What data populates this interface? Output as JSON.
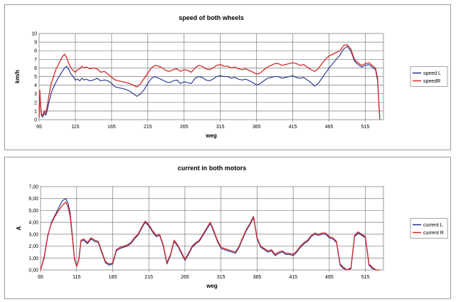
{
  "chart_data": [
    {
      "type": "line",
      "title": "speed of both wheels",
      "xlabel": "weg",
      "ylabel": "km/h",
      "xlim": [
        65,
        540
      ],
      "ylim": [
        0,
        10
      ],
      "x_ticks": [
        "65",
        "115",
        "165",
        "215",
        "265",
        "315",
        "365",
        "415",
        "465",
        "515"
      ],
      "y_ticks": [
        "0",
        "1",
        "2",
        "3",
        "4",
        "5",
        "6",
        "7",
        "8",
        "9",
        "10"
      ],
      "grid": true,
      "legend_position": "right",
      "series": [
        {
          "name": "speed L",
          "color": "#1f2f8a",
          "x": [
            65,
            66,
            67,
            68,
            70,
            72,
            74,
            76,
            78,
            80,
            82,
            85,
            88,
            91,
            94,
            97,
            100,
            103,
            106,
            109,
            112,
            115,
            118,
            121,
            124,
            127,
            130,
            135,
            140,
            145,
            150,
            155,
            160,
            165,
            170,
            175,
            180,
            185,
            190,
            195,
            200,
            205,
            210,
            215,
            220,
            225,
            230,
            235,
            240,
            245,
            250,
            255,
            260,
            265,
            270,
            275,
            280,
            285,
            290,
            295,
            300,
            305,
            310,
            315,
            320,
            325,
            330,
            335,
            340,
            345,
            350,
            355,
            360,
            365,
            370,
            375,
            380,
            385,
            390,
            395,
            400,
            405,
            410,
            415,
            420,
            425,
            430,
            435,
            440,
            445,
            450,
            455,
            460,
            465,
            470,
            475,
            480,
            485,
            490,
            495,
            500,
            505,
            510,
            515,
            520,
            523,
            526,
            529,
            532,
            535
          ],
          "y": [
            0.2,
            3.0,
            1.5,
            0.5,
            0.3,
            0.8,
            0.5,
            1.0,
            1.8,
            2.5,
            3.2,
            3.8,
            4.3,
            4.8,
            5.2,
            5.6,
            6.0,
            6.2,
            5.8,
            5.3,
            5.0,
            4.6,
            4.7,
            4.5,
            4.8,
            4.6,
            4.7,
            4.5,
            4.6,
            4.8,
            4.5,
            4.6,
            4.5,
            4.2,
            3.8,
            3.7,
            3.6,
            3.5,
            3.3,
            3.0,
            2.7,
            3.0,
            3.5,
            4.2,
            4.8,
            5.0,
            4.8,
            4.6,
            4.4,
            4.3,
            4.5,
            4.6,
            4.2,
            4.4,
            4.3,
            4.2,
            4.8,
            5.0,
            4.9,
            4.6,
            4.5,
            4.7,
            5.0,
            5.1,
            5.0,
            5.0,
            4.8,
            4.9,
            4.7,
            4.6,
            4.7,
            4.5,
            4.3,
            4.0,
            4.2,
            4.5,
            4.8,
            4.9,
            5.0,
            5.0,
            4.8,
            4.9,
            5.0,
            5.1,
            4.9,
            4.8,
            4.9,
            4.6,
            4.3,
            3.9,
            4.2,
            4.8,
            5.4,
            6.0,
            6.5,
            7.0,
            7.5,
            8.2,
            8.5,
            8.0,
            6.8,
            6.4,
            6.1,
            6.3,
            6.4,
            6.2,
            6.0,
            5.8,
            4.5,
            0.0
          ]
        },
        {
          "name": "speedR",
          "color": "#d42a2a",
          "x": [
            65,
            66,
            67,
            68,
            70,
            72,
            74,
            76,
            78,
            80,
            82,
            85,
            88,
            91,
            94,
            97,
            100,
            103,
            106,
            109,
            112,
            115,
            118,
            121,
            124,
            127,
            130,
            135,
            140,
            145,
            150,
            155,
            160,
            165,
            170,
            175,
            180,
            185,
            190,
            195,
            200,
            205,
            210,
            215,
            220,
            225,
            230,
            235,
            240,
            245,
            250,
            255,
            260,
            265,
            270,
            275,
            280,
            285,
            290,
            295,
            300,
            305,
            310,
            315,
            320,
            325,
            330,
            335,
            340,
            345,
            350,
            355,
            360,
            365,
            370,
            375,
            380,
            385,
            390,
            395,
            400,
            405,
            410,
            415,
            420,
            425,
            430,
            435,
            440,
            445,
            450,
            455,
            460,
            465,
            470,
            475,
            480,
            485,
            490,
            495,
            500,
            505,
            510,
            515,
            520,
            523,
            526,
            529,
            532,
            535
          ],
          "y": [
            0.3,
            3.4,
            1.8,
            0.7,
            0.5,
            1.0,
            0.8,
            1.5,
            2.5,
            3.5,
            4.3,
            5.0,
            5.8,
            6.3,
            6.8,
            7.3,
            7.6,
            7.2,
            6.5,
            6.0,
            5.7,
            5.5,
            5.8,
            5.9,
            6.2,
            6.0,
            6.1,
            5.9,
            6.0,
            5.9,
            5.5,
            5.6,
            5.3,
            4.9,
            4.6,
            4.5,
            4.4,
            4.3,
            4.2,
            4.0,
            3.8,
            4.2,
            4.8,
            5.4,
            6.0,
            6.3,
            6.2,
            6.0,
            5.7,
            5.6,
            5.8,
            5.9,
            5.6,
            5.8,
            5.7,
            5.5,
            6.0,
            6.3,
            6.2,
            5.9,
            5.8,
            6.0,
            6.3,
            6.4,
            6.2,
            6.2,
            6.0,
            6.1,
            5.9,
            5.8,
            5.9,
            5.7,
            5.5,
            5.3,
            5.4,
            5.8,
            6.1,
            6.3,
            6.5,
            6.5,
            6.3,
            6.4,
            6.5,
            6.6,
            6.5,
            6.3,
            6.4,
            6.1,
            5.8,
            5.6,
            5.9,
            6.5,
            7.0,
            7.4,
            7.6,
            7.8,
            8.0,
            8.6,
            8.7,
            8.2,
            7.0,
            6.6,
            6.3,
            6.5,
            6.6,
            6.4,
            6.2,
            6.0,
            4.8,
            0.0
          ]
        }
      ]
    },
    {
      "type": "line",
      "title": "current in both motors",
      "xlabel": "weg",
      "ylabel": "A",
      "xlim": [
        65,
        540
      ],
      "ylim": [
        0,
        7
      ],
      "x_ticks": [
        "65",
        "115",
        "165",
        "215",
        "265",
        "315",
        "365",
        "415",
        "465",
        "515"
      ],
      "y_ticks": [
        "0,00",
        "1,00",
        "2,00",
        "3,00",
        "4,00",
        "5,00",
        "6,00",
        "7,00"
      ],
      "grid": true,
      "legend_position": "right",
      "series": [
        {
          "name": "current L",
          "color": "#1f2f8a",
          "x": [
            65,
            70,
            75,
            80,
            85,
            90,
            95,
            100,
            103,
            106,
            109,
            112,
            115,
            118,
            121,
            125,
            130,
            135,
            140,
            145,
            150,
            155,
            160,
            165,
            170,
            175,
            180,
            185,
            190,
            195,
            200,
            205,
            210,
            215,
            220,
            225,
            230,
            235,
            240,
            245,
            250,
            255,
            260,
            265,
            270,
            275,
            280,
            285,
            290,
            295,
            300,
            305,
            310,
            315,
            320,
            325,
            330,
            335,
            340,
            345,
            350,
            355,
            360,
            365,
            370,
            375,
            380,
            385,
            390,
            395,
            400,
            405,
            410,
            415,
            420,
            425,
            430,
            435,
            440,
            445,
            450,
            455,
            460,
            465,
            470,
            475,
            480,
            485,
            490,
            495,
            500,
            505,
            510,
            515,
            520,
            525,
            530,
            535
          ],
          "y": [
            0.0,
            1.0,
            2.8,
            4.0,
            4.6,
            5.2,
            5.8,
            6.0,
            5.6,
            4.8,
            3.0,
            1.0,
            0.3,
            0.8,
            2.4,
            2.5,
            2.2,
            2.6,
            2.4,
            2.3,
            1.4,
            0.6,
            0.4,
            0.5,
            1.6,
            1.8,
            1.9,
            2.0,
            2.2,
            2.6,
            2.9,
            3.5,
            4.0,
            3.7,
            3.2,
            2.8,
            2.9,
            2.0,
            0.5,
            1.2,
            2.4,
            2.0,
            1.4,
            0.8,
            1.3,
            1.9,
            2.2,
            2.4,
            2.9,
            3.4,
            3.9,
            3.2,
            2.4,
            1.8,
            1.7,
            1.6,
            1.5,
            1.4,
            1.9,
            2.6,
            3.3,
            3.8,
            4.4,
            2.6,
            1.9,
            1.7,
            1.5,
            1.6,
            1.2,
            1.4,
            1.5,
            1.3,
            1.3,
            1.2,
            1.5,
            1.9,
            2.2,
            2.4,
            2.8,
            3.0,
            2.9,
            3.0,
            3.0,
            2.7,
            2.6,
            2.3,
            0.4,
            0.1,
            0.0,
            0.1,
            2.8,
            3.1,
            2.9,
            2.7,
            0.4,
            0.1,
            0.0,
            0.0
          ]
        },
        {
          "name": "current R",
          "color": "#d42a2a",
          "x": [
            65,
            70,
            75,
            80,
            85,
            90,
            95,
            100,
            103,
            106,
            109,
            112,
            115,
            118,
            121,
            125,
            130,
            135,
            140,
            145,
            150,
            155,
            160,
            165,
            170,
            175,
            180,
            185,
            190,
            195,
            200,
            205,
            210,
            215,
            220,
            225,
            230,
            235,
            240,
            245,
            250,
            255,
            260,
            265,
            270,
            275,
            280,
            285,
            290,
            295,
            300,
            305,
            310,
            315,
            320,
            325,
            330,
            335,
            340,
            345,
            350,
            355,
            360,
            365,
            370,
            375,
            380,
            385,
            390,
            395,
            400,
            405,
            410,
            415,
            420,
            425,
            430,
            435,
            440,
            445,
            450,
            455,
            460,
            465,
            470,
            475,
            480,
            485,
            490,
            495,
            500,
            505,
            510,
            515,
            520,
            525,
            530,
            535
          ],
          "y": [
            0.0,
            1.1,
            2.9,
            3.9,
            4.5,
            5.0,
            5.4,
            5.7,
            5.3,
            4.5,
            2.8,
            0.9,
            0.3,
            0.9,
            2.5,
            2.6,
            2.3,
            2.7,
            2.5,
            2.4,
            1.5,
            0.7,
            0.5,
            0.6,
            1.7,
            1.9,
            2.0,
            2.1,
            2.3,
            2.7,
            3.0,
            3.6,
            4.1,
            3.8,
            3.3,
            2.9,
            3.0,
            2.1,
            0.6,
            1.3,
            2.5,
            2.1,
            1.5,
            0.9,
            1.4,
            2.0,
            2.3,
            2.5,
            3.0,
            3.5,
            4.0,
            3.3,
            2.5,
            1.9,
            1.8,
            1.7,
            1.6,
            1.5,
            2.0,
            2.7,
            3.4,
            3.9,
            4.5,
            2.7,
            2.0,
            1.8,
            1.6,
            1.7,
            1.3,
            1.5,
            1.6,
            1.4,
            1.4,
            1.3,
            1.6,
            2.0,
            2.3,
            2.5,
            2.9,
            3.1,
            3.0,
            3.1,
            3.1,
            2.8,
            2.7,
            2.4,
            0.5,
            0.2,
            0.0,
            0.2,
            2.9,
            3.2,
            3.0,
            2.8,
            0.5,
            0.2,
            0.0,
            0.0
          ]
        }
      ]
    }
  ]
}
